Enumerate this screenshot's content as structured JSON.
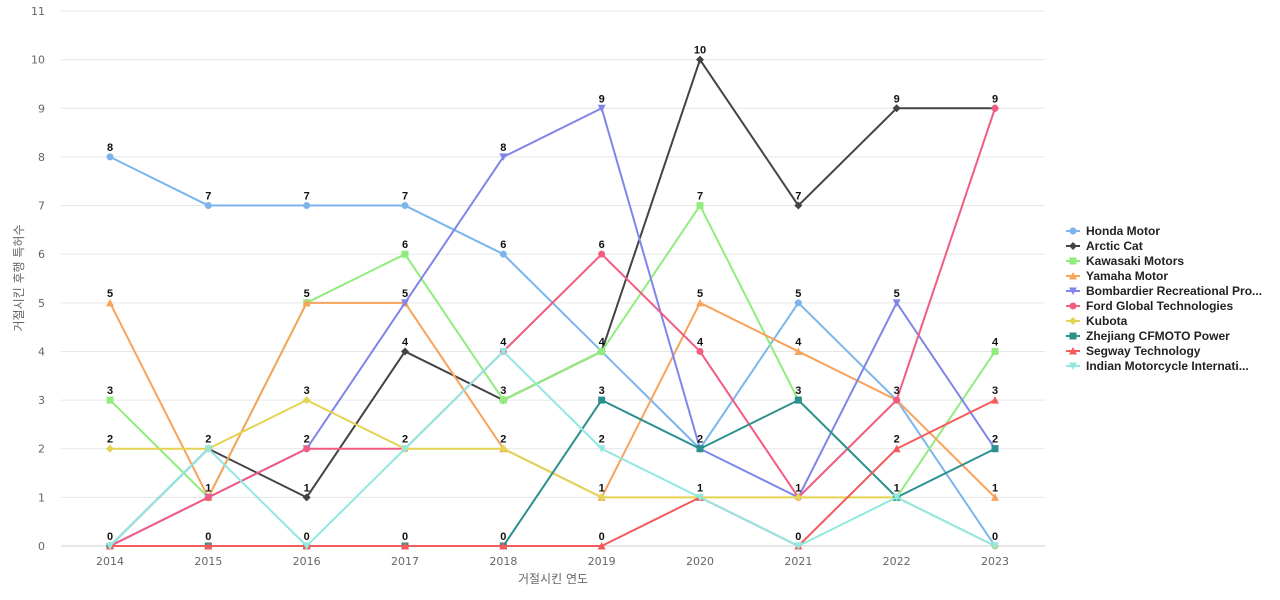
{
  "chart_data": {
    "type": "line",
    "title": "",
    "xlabel": "거절시킨 연도",
    "ylabel": "거절시킨 후행 특허수",
    "x": [
      2014,
      2015,
      2016,
      2017,
      2018,
      2019,
      2020,
      2021,
      2022,
      2023
    ],
    "ylim": [
      0,
      11
    ],
    "yticks": [
      0,
      1,
      2,
      3,
      4,
      5,
      6,
      7,
      8,
      9,
      10,
      11
    ],
    "grid": true,
    "legend_position": "right",
    "series": [
      {
        "name": "Honda Motor",
        "color": "#7cb5ec",
        "marker": "circle",
        "values": [
          8,
          7,
          7,
          7,
          6,
          4,
          2,
          5,
          3,
          0
        ]
      },
      {
        "name": "Arctic Cat",
        "color": "#434348",
        "marker": "diamond",
        "values": [
          0,
          2,
          1,
          4,
          3,
          4,
          10,
          7,
          9,
          9
        ]
      },
      {
        "name": "Kawasaki Motors",
        "color": "#90ed7d",
        "marker": "square",
        "values": [
          3,
          1,
          5,
          6,
          3,
          4,
          7,
          3,
          1,
          4
        ]
      },
      {
        "name": "Yamaha Motor",
        "color": "#f7a35c",
        "marker": "triangle",
        "values": [
          5,
          1,
          5,
          5,
          2,
          1,
          5,
          4,
          3,
          1
        ]
      },
      {
        "name": "Bombardier Recreational Pro...",
        "color": "#8085e9",
        "marker": "triangle-down",
        "values": [
          0,
          1,
          2,
          5,
          8,
          9,
          2,
          1,
          5,
          2
        ]
      },
      {
        "name": "Ford Global Technologies",
        "color": "#f15c80",
        "marker": "circle",
        "values": [
          0,
          1,
          2,
          2,
          4,
          6,
          4,
          1,
          3,
          9
        ]
      },
      {
        "name": "Kubota",
        "color": "#e4d354",
        "marker": "diamond",
        "values": [
          2,
          2,
          3,
          2,
          2,
          1,
          1,
          1,
          1,
          0
        ]
      },
      {
        "name": "Zhejiang CFMOTO Power",
        "color": "#2b908f",
        "marker": "square",
        "values": [
          0,
          0,
          0,
          0,
          0,
          3,
          2,
          3,
          1,
          2
        ]
      },
      {
        "name": "Segway Technology",
        "color": "#f45b5b",
        "marker": "triangle",
        "values": [
          0,
          0,
          0,
          0,
          0,
          0,
          1,
          0,
          2,
          3
        ]
      },
      {
        "name": "Indian Motorcycle Internati...",
        "color": "#91e8e1",
        "marker": "triangle-down",
        "values": [
          0,
          2,
          0,
          2,
          4,
          2,
          1,
          0,
          1,
          0
        ]
      }
    ],
    "data_labels": [
      {
        "x": 2014,
        "value": 8
      },
      {
        "x": 2014,
        "value": 5
      },
      {
        "x": 2014,
        "value": 3
      },
      {
        "x": 2014,
        "value": 2
      },
      {
        "x": 2014,
        "value": 0
      },
      {
        "x": 2015,
        "value": 7
      },
      {
        "x": 2015,
        "value": 2
      },
      {
        "x": 2015,
        "value": 1
      },
      {
        "x": 2015,
        "value": 0
      },
      {
        "x": 2016,
        "value": 7
      },
      {
        "x": 2016,
        "value": 5
      },
      {
        "x": 2016,
        "value": 3
      },
      {
        "x": 2016,
        "value": 2
      },
      {
        "x": 2016,
        "value": 1
      },
      {
        "x": 2016,
        "value": 0
      },
      {
        "x": 2017,
        "value": 7
      },
      {
        "x": 2017,
        "value": 6
      },
      {
        "x": 2017,
        "value": 5
      },
      {
        "x": 2017,
        "value": 4
      },
      {
        "x": 2017,
        "value": 2
      },
      {
        "x": 2017,
        "value": 0
      },
      {
        "x": 2018,
        "value": 8
      },
      {
        "x": 2018,
        "value": 6
      },
      {
        "x": 2018,
        "value": 4
      },
      {
        "x": 2018,
        "value": 3
      },
      {
        "x": 2018,
        "value": 2
      },
      {
        "x": 2018,
        "value": 0
      },
      {
        "x": 2019,
        "value": 9
      },
      {
        "x": 2019,
        "value": 6
      },
      {
        "x": 2019,
        "value": 4
      },
      {
        "x": 2019,
        "value": 3
      },
      {
        "x": 2019,
        "value": 2
      },
      {
        "x": 2019,
        "value": 1
      },
      {
        "x": 2019,
        "value": 0
      },
      {
        "x": 2020,
        "value": 10
      },
      {
        "x": 2020,
        "value": 7
      },
      {
        "x": 2020,
        "value": 5
      },
      {
        "x": 2020,
        "value": 4
      },
      {
        "x": 2020,
        "value": 2
      },
      {
        "x": 2020,
        "value": 1
      },
      {
        "x": 2021,
        "value": 7
      },
      {
        "x": 2021,
        "value": 5
      },
      {
        "x": 2021,
        "value": 4
      },
      {
        "x": 2021,
        "value": 3
      },
      {
        "x": 2021,
        "value": 1
      },
      {
        "x": 2021,
        "value": 0
      },
      {
        "x": 2022,
        "value": 9
      },
      {
        "x": 2022,
        "value": 5
      },
      {
        "x": 2022,
        "value": 3
      },
      {
        "x": 2022,
        "value": 2
      },
      {
        "x": 2022,
        "value": 1
      },
      {
        "x": 2023,
        "value": 9
      },
      {
        "x": 2023,
        "value": 4
      },
      {
        "x": 2023,
        "value": 3
      },
      {
        "x": 2023,
        "value": 2
      },
      {
        "x": 2023,
        "value": 1
      },
      {
        "x": 2023,
        "value": 0
      }
    ]
  }
}
